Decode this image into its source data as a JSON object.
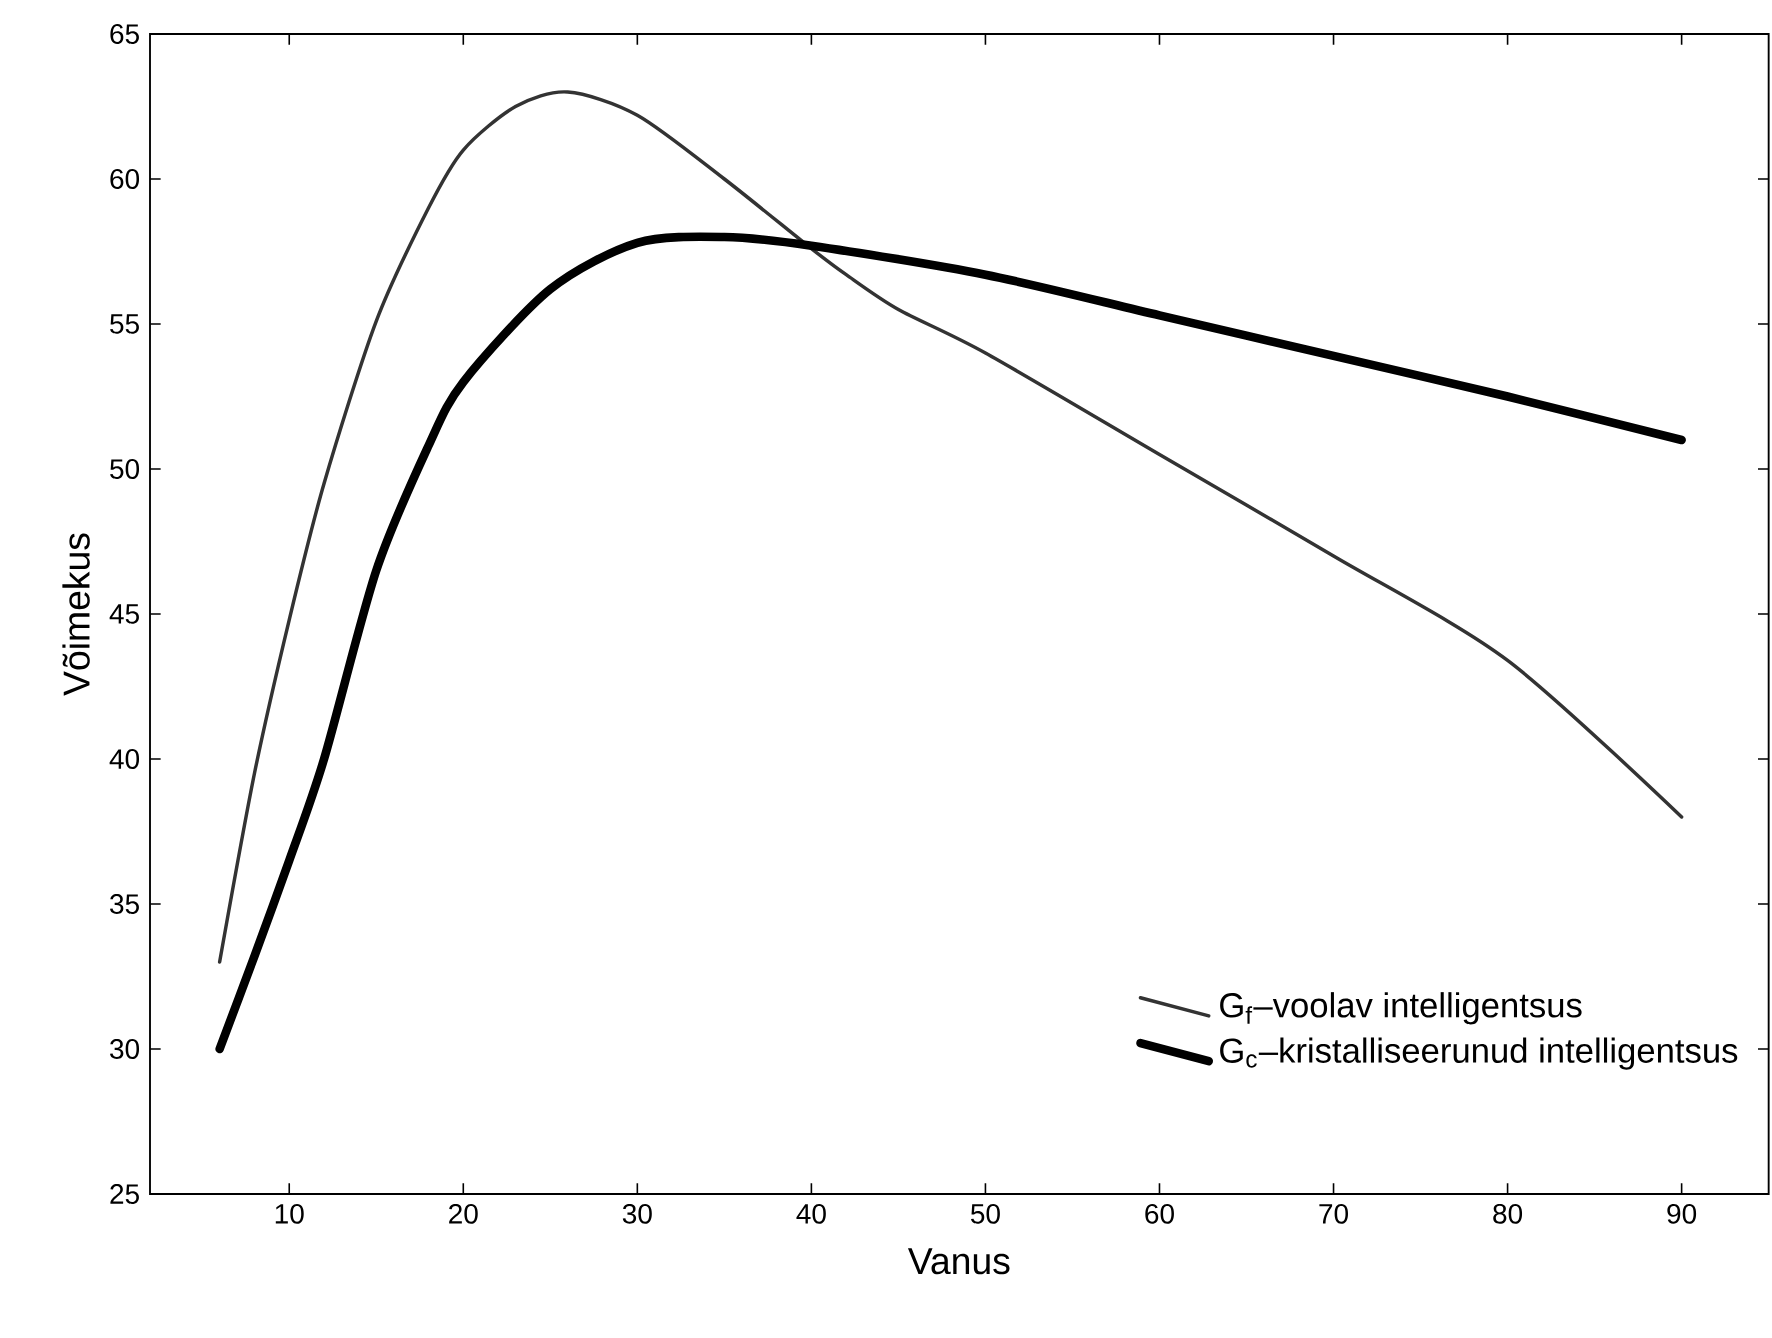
{
  "chart_data": {
    "type": "line",
    "xlabel": "Vanus",
    "ylabel": "Võimekus",
    "xlim": [
      2,
      95
    ],
    "ylim": [
      25,
      65
    ],
    "xticks": [
      10,
      20,
      30,
      40,
      50,
      60,
      70,
      80,
      90
    ],
    "yticks": [
      25,
      30,
      35,
      40,
      45,
      50,
      55,
      60,
      65
    ],
    "legend": "bottom right",
    "marker": "none",
    "line_style": "solid",
    "grid": false,
    "series": [
      {
        "name": "G$_{f}$–voolav intelligentsus",
        "color": "#333333",
        "x": [
          6,
          8,
          10,
          12,
          15,
          18,
          20,
          23,
          26,
          30,
          35,
          40,
          42,
          45,
          50,
          60,
          70,
          80,
          90
        ],
        "values": [
          33,
          39.5,
          44.8,
          49.5,
          55.1,
          59,
          61,
          62.5,
          63,
          62.2,
          60,
          57.6,
          56.7,
          55.5,
          54,
          50.5,
          47,
          43.4,
          38
        ]
      },
      {
        "name": "G$_{c}$–kristalliseerunud intelligentsus",
        "color": "#000000",
        "x": [
          6,
          8,
          10,
          12,
          15,
          18,
          20,
          25,
          30,
          35,
          40,
          50,
          60,
          70,
          80,
          90
        ],
        "values": [
          30,
          33.2,
          36.5,
          40,
          46.5,
          50.8,
          53,
          56.2,
          57.8,
          58,
          57.7,
          56.7,
          55.3,
          53.9,
          52.5,
          51
        ]
      }
    ]
  }
}
